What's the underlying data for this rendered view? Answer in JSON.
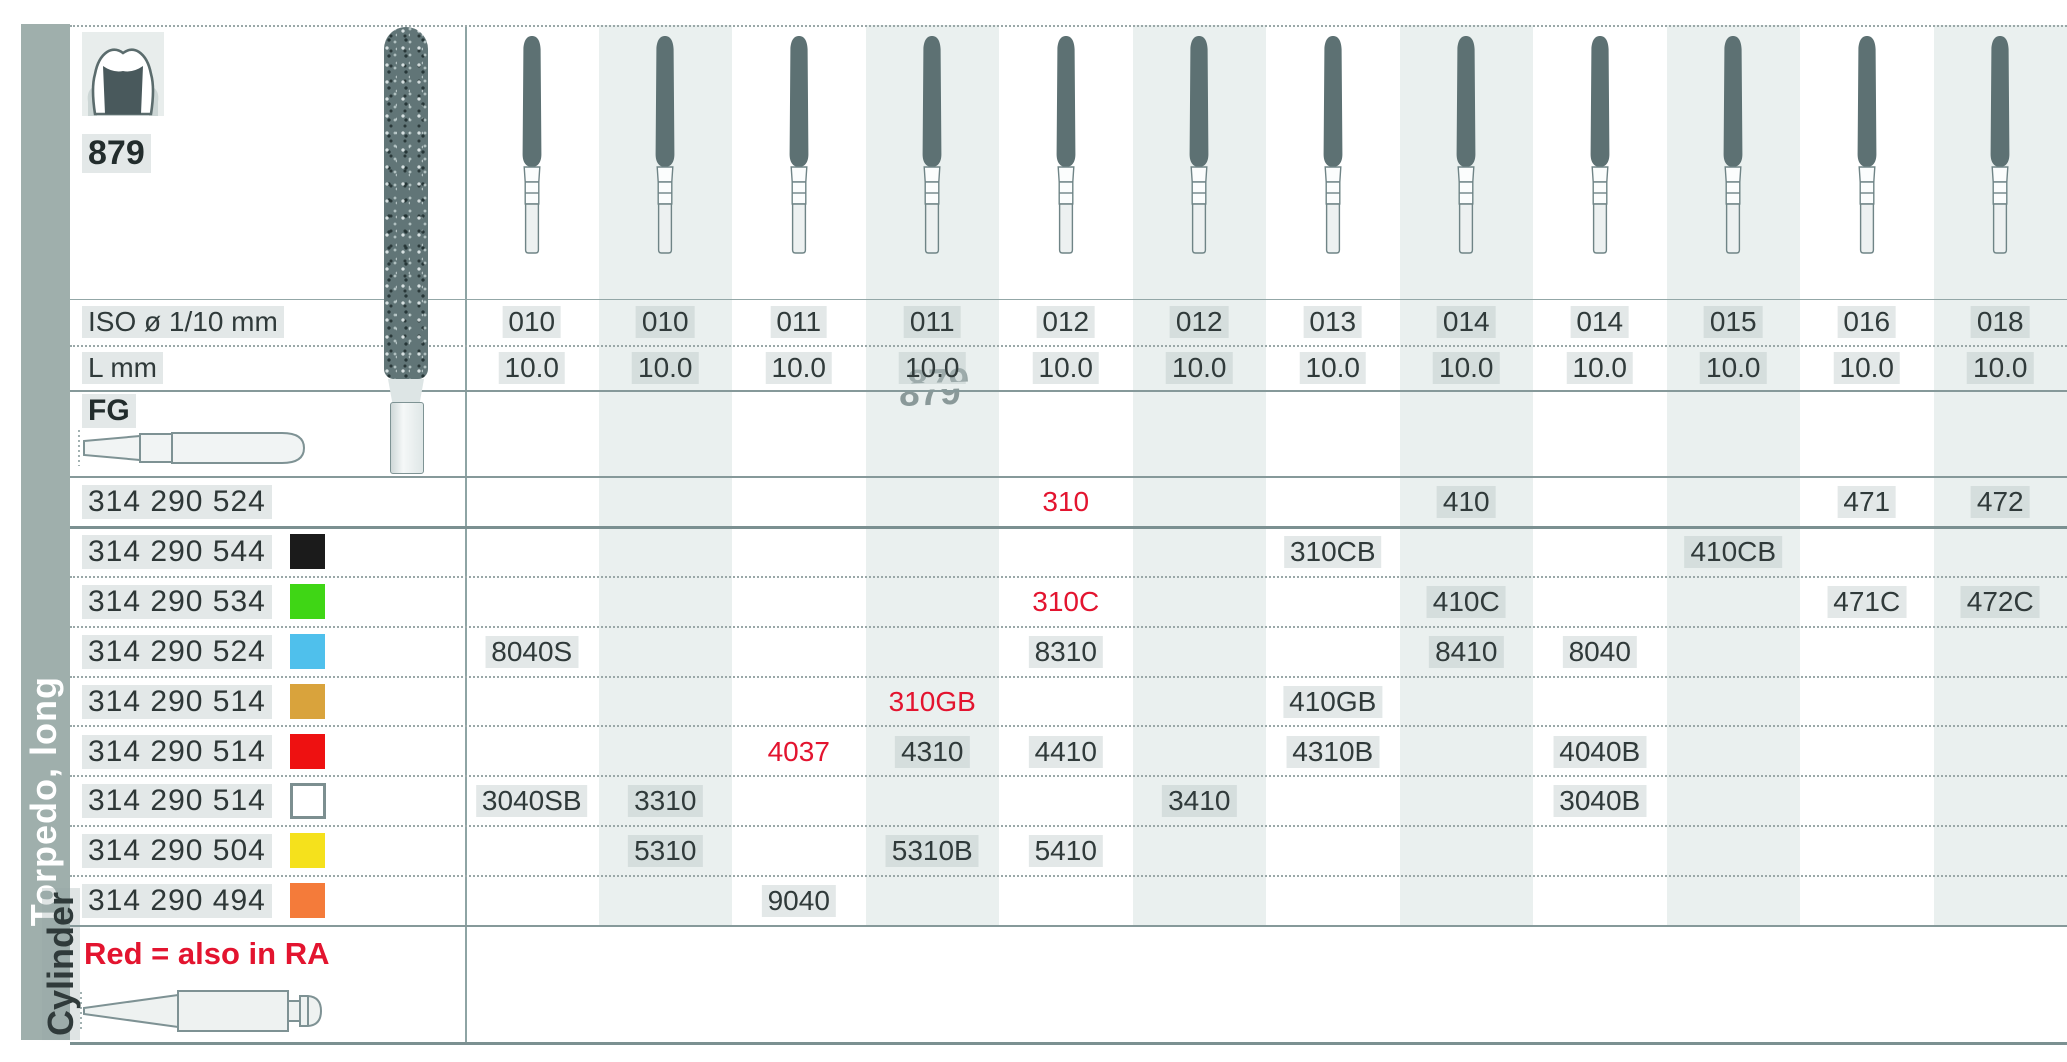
{
  "header": {
    "figure_number": "879",
    "watermark": "879",
    "iso_label": "ISO ø 1/10 mm",
    "length_label": "L mm",
    "shank_label": "FG"
  },
  "sidebar": {
    "section_label": "Torpedo, long",
    "next_section_label": "Cylinder"
  },
  "columns": [
    {
      "iso": "010",
      "l": "10.0"
    },
    {
      "iso": "010",
      "l": "10.0"
    },
    {
      "iso": "011",
      "l": "10.0"
    },
    {
      "iso": "011",
      "l": "10.0"
    },
    {
      "iso": "012",
      "l": "10.0"
    },
    {
      "iso": "012",
      "l": "10.0"
    },
    {
      "iso": "013",
      "l": "10.0"
    },
    {
      "iso": "014",
      "l": "10.0"
    },
    {
      "iso": "014",
      "l": "10.0"
    },
    {
      "iso": "015",
      "l": "10.0"
    },
    {
      "iso": "016",
      "l": "10.0"
    },
    {
      "iso": "018",
      "l": "10.0"
    }
  ],
  "rows": [
    {
      "code": "314 290 524",
      "chip": null,
      "cells": [
        {
          "col": 5,
          "text": "310",
          "red": true
        },
        {
          "col": 8,
          "text": "410"
        },
        {
          "col": 11,
          "text": "471"
        },
        {
          "col": 12,
          "text": "472"
        }
      ]
    },
    {
      "code": "314 290 544",
      "chip": "#1b1b1b",
      "cells": [
        {
          "col": 7,
          "text": "310CB"
        },
        {
          "col": 10,
          "text": "410CB"
        }
      ]
    },
    {
      "code": "314 290 534",
      "chip": "#3fd615",
      "cells": [
        {
          "col": 5,
          "text": "310C",
          "red": true
        },
        {
          "col": 8,
          "text": "410C"
        },
        {
          "col": 11,
          "text": "471C"
        },
        {
          "col": 12,
          "text": "472C"
        }
      ]
    },
    {
      "code": "314 290 524",
      "chip": "#4fc0ec",
      "cells": [
        {
          "col": 1,
          "text": "8040S"
        },
        {
          "col": 5,
          "text": "8310"
        },
        {
          "col": 8,
          "text": "8410"
        },
        {
          "col": 9,
          "text": "8040"
        }
      ]
    },
    {
      "code": "314 290 514",
      "chip": "#d9a33c",
      "cells": [
        {
          "col": 4,
          "text": "310GB",
          "red": true
        },
        {
          "col": 7,
          "text": "410GB"
        }
      ]
    },
    {
      "code": "314 290 514",
      "chip": "#ee1111",
      "cells": [
        {
          "col": 3,
          "text": "4037",
          "red": true
        },
        {
          "col": 4,
          "text": "4310"
        },
        {
          "col": 5,
          "text": "4410"
        },
        {
          "col": 7,
          "text": "4310B"
        },
        {
          "col": 9,
          "text": "4040B"
        }
      ]
    },
    {
      "code": "314 290 514",
      "chip": "#ffffff",
      "chip_outlined": true,
      "cells": [
        {
          "col": 1,
          "text": "3040SB"
        },
        {
          "col": 2,
          "text": "3310"
        },
        {
          "col": 6,
          "text": "3410"
        },
        {
          "col": 9,
          "text": "3040B"
        }
      ]
    },
    {
      "code": "314 290 504",
      "chip": "#f5e11c",
      "cells": [
        {
          "col": 2,
          "text": "5310"
        },
        {
          "col": 4,
          "text": "5310B"
        },
        {
          "col": 5,
          "text": "5410"
        }
      ]
    },
    {
      "code": "314 290 494",
      "chip": "#f47b3a",
      "cells": [
        {
          "col": 3,
          "text": "9040"
        }
      ]
    }
  ],
  "footer": {
    "note": "Red = also in RA"
  },
  "colors": {
    "accent_red": "#e3142f",
    "column_band": "#eaf0ef",
    "sidebar": "#9fafac",
    "bur_head": "#5d7173"
  }
}
